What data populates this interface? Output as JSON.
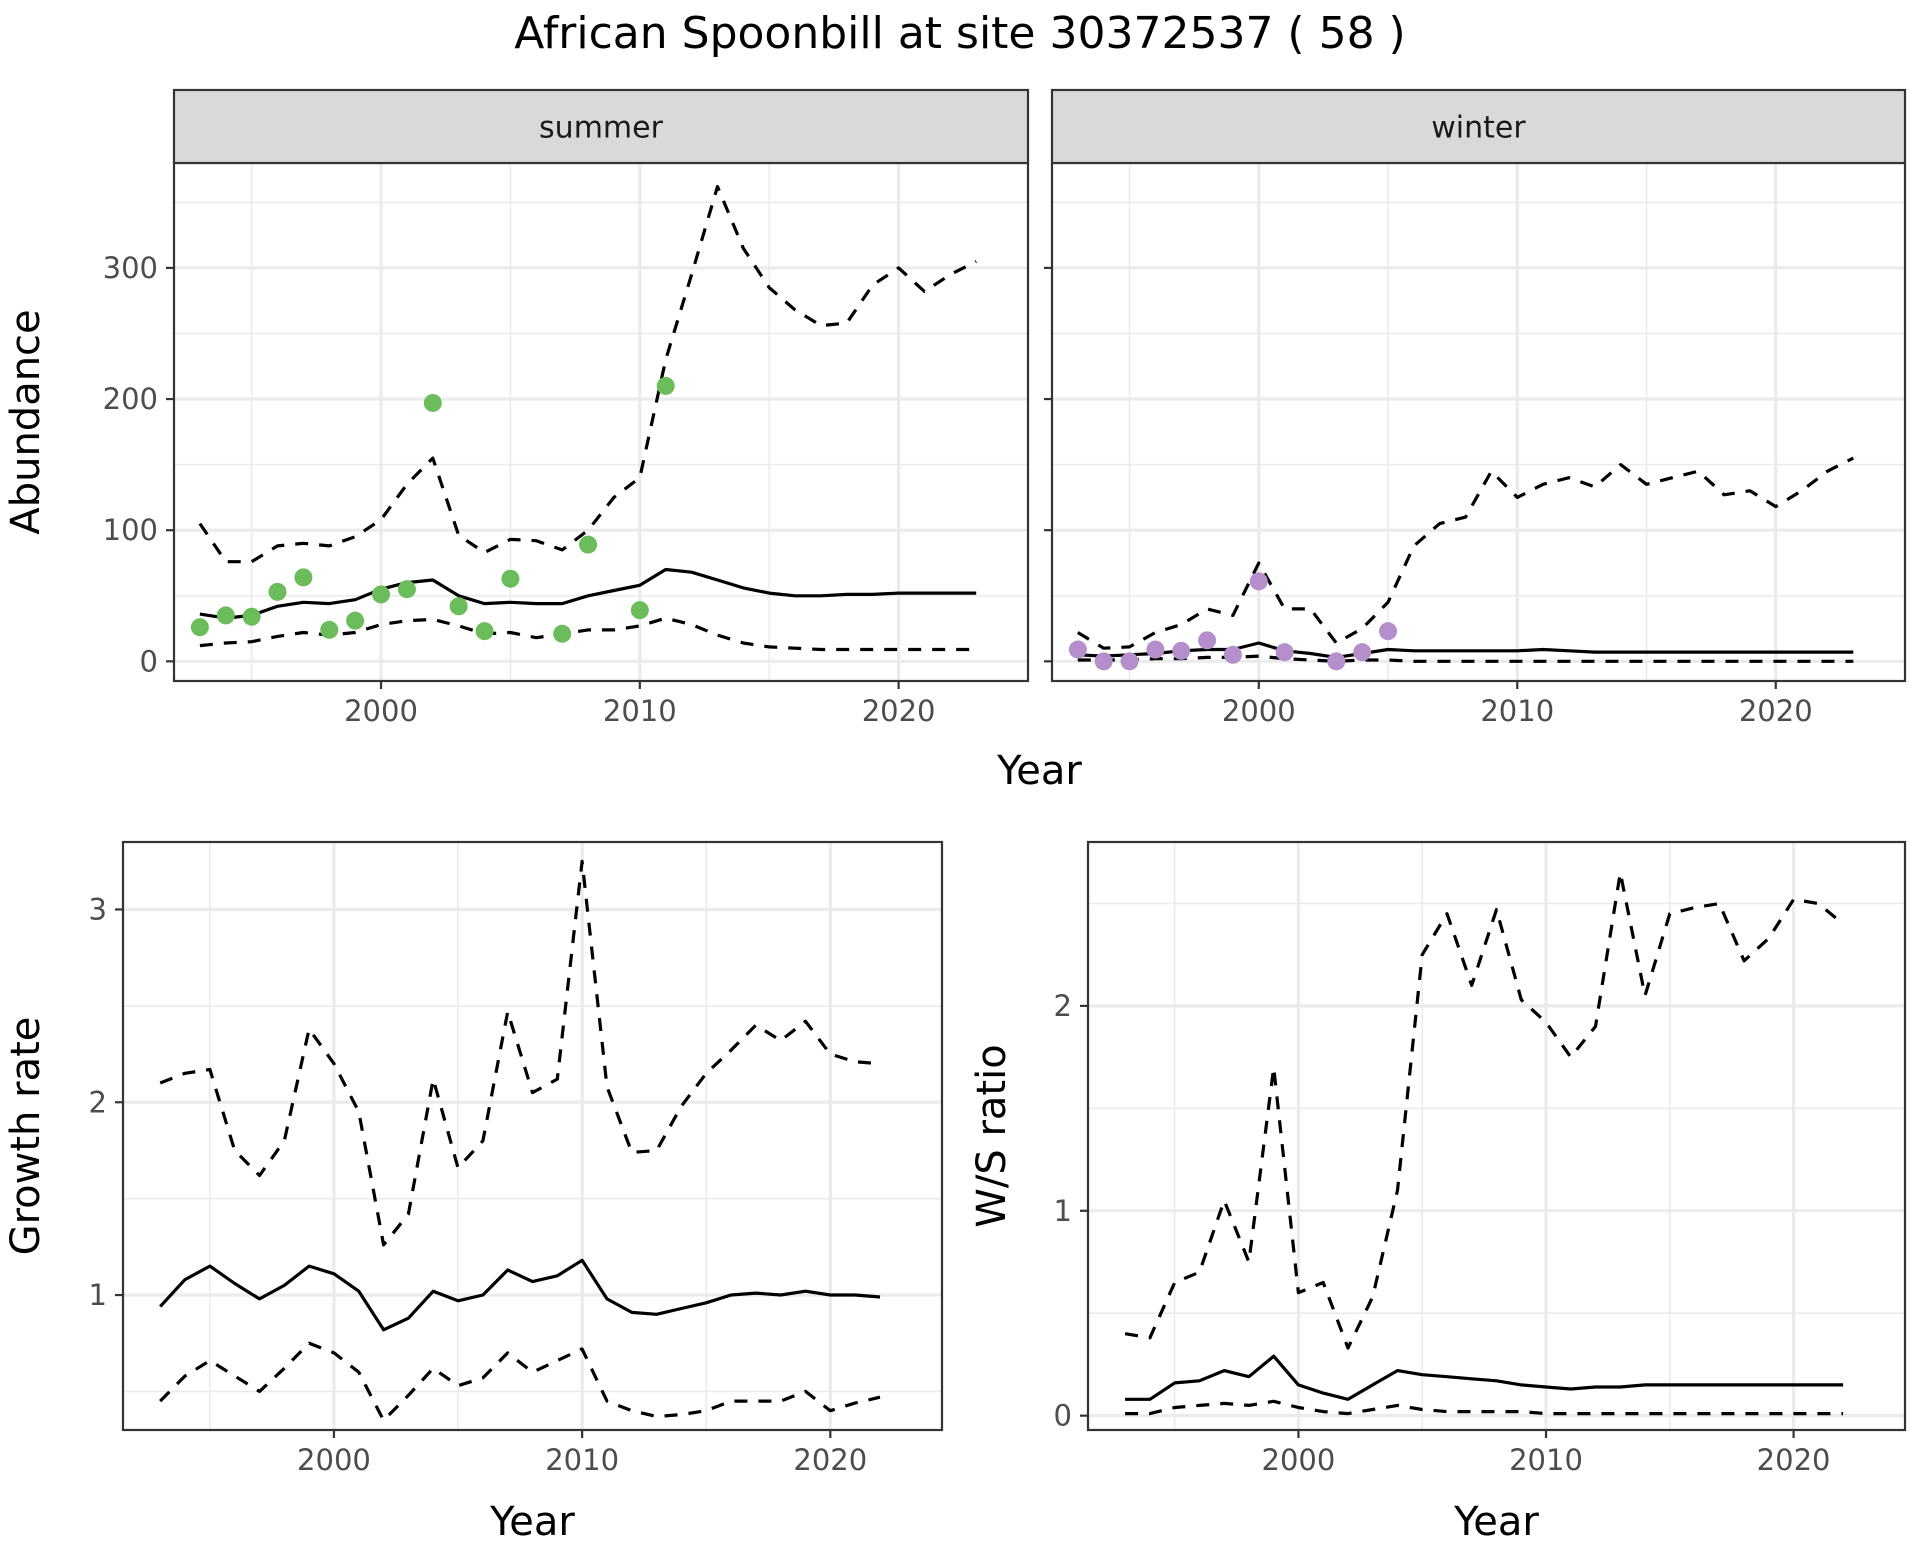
{
  "title": "African Spoonbill at site 30372537 ( 58 )",
  "colors": {
    "summer_points": "#6ABD5A",
    "winter_points": "#B48FCB",
    "grid": "#EBEBEB",
    "strip_fill": "#D9D9D9",
    "line": "#000000"
  },
  "chart_data": [
    {
      "type": "line",
      "panel": "summer",
      "strip_label": "summer",
      "xlabel": "Year",
      "ylabel": "Abundance",
      "xlim": [
        1992,
        2025
      ],
      "ylim": [
        -15,
        380
      ],
      "x_ticks": [
        2000,
        2010,
        2020
      ],
      "x_tick_labels": [
        "2000",
        "2010",
        "2020"
      ],
      "y_ticks": [
        0,
        100,
        200,
        300
      ],
      "y_tick_labels": [
        "0",
        "100",
        "200",
        "300"
      ],
      "grid": true,
      "series": [
        {
          "role": "estimate",
          "style": "solid",
          "x": [
            1993,
            1994,
            1995,
            1996,
            1997,
            1998,
            1999,
            2000,
            2001,
            2002,
            2003,
            2004,
            2005,
            2006,
            2007,
            2008,
            2009,
            2010,
            2011,
            2012,
            2013,
            2014,
            2015,
            2016,
            2017,
            2018,
            2019,
            2020,
            2021,
            2022,
            2023
          ],
          "y": [
            36,
            33,
            35,
            42,
            45,
            44,
            47,
            55,
            60,
            62,
            50,
            44,
            45,
            44,
            44,
            50,
            54,
            58,
            70,
            68,
            62,
            56,
            52,
            50,
            50,
            51,
            51,
            52,
            52,
            52,
            52
          ]
        },
        {
          "role": "upper",
          "style": "dashed",
          "x": [
            1993,
            1994,
            1995,
            1996,
            1997,
            1998,
            1999,
            2000,
            2001,
            2002,
            2003,
            2004,
            2005,
            2006,
            2007,
            2008,
            2009,
            2010,
            2011,
            2012,
            2013,
            2014,
            2015,
            2016,
            2017,
            2018,
            2019,
            2020,
            2021,
            2022,
            2023
          ],
          "y": [
            105,
            76,
            76,
            88,
            90,
            88,
            95,
            108,
            135,
            155,
            96,
            83,
            93,
            92,
            85,
            100,
            125,
            140,
            230,
            295,
            362,
            315,
            285,
            268,
            256,
            258,
            287,
            300,
            282,
            295,
            305
          ]
        },
        {
          "role": "lower",
          "style": "dashed",
          "x": [
            1993,
            1994,
            1995,
            1996,
            1997,
            1998,
            1999,
            2000,
            2001,
            2002,
            2003,
            2004,
            2005,
            2006,
            2007,
            2008,
            2009,
            2010,
            2011,
            2012,
            2013,
            2014,
            2015,
            2016,
            2017,
            2018,
            2019,
            2020,
            2021,
            2022,
            2023
          ],
          "y": [
            12,
            14,
            15,
            19,
            22,
            20,
            22,
            28,
            31,
            32,
            27,
            21,
            22,
            18,
            21,
            24,
            24,
            27,
            33,
            28,
            20,
            14,
            11,
            10,
            9,
            9,
            9,
            9,
            9,
            9,
            9
          ]
        },
        {
          "role": "observed",
          "style": "points",
          "x": [
            1993,
            1994,
            1995,
            1996,
            1997,
            1998,
            1999,
            2000,
            2001,
            2002,
            2003,
            2004,
            2005,
            2007,
            2008,
            2010,
            2011
          ],
          "y": [
            26,
            35,
            34,
            53,
            64,
            24,
            31,
            51,
            55,
            197,
            42,
            23,
            63,
            21,
            89,
            39,
            210
          ]
        }
      ]
    },
    {
      "type": "line",
      "panel": "winter",
      "strip_label": "winter",
      "xlabel": "Year",
      "ylabel": "",
      "xlim": [
        1992,
        2025
      ],
      "ylim": [
        -15,
        380
      ],
      "x_ticks": [
        2000,
        2010,
        2020
      ],
      "x_tick_labels": [
        "2000",
        "2010",
        "2020"
      ],
      "y_ticks": [
        0,
        100,
        200,
        300
      ],
      "grid": true,
      "series": [
        {
          "role": "estimate",
          "style": "solid",
          "x": [
            1993,
            1994,
            1995,
            1996,
            1997,
            1998,
            1999,
            2000,
            2001,
            2002,
            2003,
            2004,
            2005,
            2006,
            2007,
            2008,
            2009,
            2010,
            2011,
            2012,
            2013,
            2014,
            2015,
            2016,
            2017,
            2018,
            2019,
            2020,
            2021,
            2022,
            2023
          ],
          "y": [
            5,
            4,
            5,
            6,
            8,
            9,
            9,
            14,
            8,
            6,
            3,
            6,
            9,
            8,
            8,
            8,
            8,
            8,
            9,
            8,
            7,
            7,
            7,
            7,
            7,
            7,
            7,
            7,
            7,
            7,
            7
          ]
        },
        {
          "role": "upper",
          "style": "dashed",
          "x": [
            1993,
            1994,
            1995,
            1996,
            1997,
            1998,
            1999,
            2000,
            2001,
            2002,
            2003,
            2004,
            2005,
            2006,
            2007,
            2008,
            2009,
            2010,
            2011,
            2012,
            2013,
            2014,
            2015,
            2016,
            2017,
            2018,
            2019,
            2020,
            2021,
            2022,
            2023
          ],
          "y": [
            22,
            10,
            11,
            22,
            28,
            40,
            35,
            75,
            40,
            40,
            14,
            25,
            45,
            88,
            105,
            110,
            145,
            125,
            135,
            140,
            133,
            150,
            135,
            140,
            145,
            127,
            130,
            118,
            130,
            145,
            155
          ]
        },
        {
          "role": "lower",
          "style": "dashed",
          "x": [
            1993,
            1994,
            1995,
            1996,
            1997,
            1998,
            1999,
            2000,
            2001,
            2002,
            2003,
            2004,
            2005,
            2006,
            2007,
            2008,
            2009,
            2010,
            2011,
            2012,
            2013,
            2014,
            2015,
            2016,
            2017,
            2018,
            2019,
            2020,
            2021,
            2022,
            2023
          ],
          "y": [
            1,
            1,
            1,
            2,
            2,
            3,
            3,
            4,
            2,
            1,
            0,
            1,
            1,
            0,
            0,
            0,
            0,
            0,
            0,
            0,
            0,
            0,
            0,
            0,
            0,
            0,
            0,
            0,
            0,
            0,
            0
          ]
        },
        {
          "role": "observed",
          "style": "points",
          "x": [
            1993,
            1994,
            1995,
            1996,
            1997,
            1998,
            1999,
            2000,
            2001,
            2003,
            2004,
            2005
          ],
          "y": [
            9,
            0,
            0,
            9,
            8,
            16,
            5,
            61,
            7,
            0,
            7,
            23
          ]
        }
      ]
    },
    {
      "type": "line",
      "panel": "growth",
      "xlabel": "Year",
      "ylabel": "Growth rate",
      "xlim": [
        1991.5,
        2024.5
      ],
      "ylim": [
        0.3,
        3.35
      ],
      "x_ticks": [
        2000,
        2010,
        2020
      ],
      "x_tick_labels": [
        "2000",
        "2010",
        "2020"
      ],
      "y_ticks": [
        1,
        2,
        3
      ],
      "y_tick_labels": [
        "1",
        "2",
        "3"
      ],
      "grid": true,
      "series": [
        {
          "role": "estimate",
          "style": "solid",
          "x": [
            1993,
            1994,
            1995,
            1996,
            1997,
            1998,
            1999,
            2000,
            2001,
            2002,
            2003,
            2004,
            2005,
            2006,
            2007,
            2008,
            2009,
            2010,
            2011,
            2012,
            2013,
            2014,
            2015,
            2016,
            2017,
            2018,
            2019,
            2020,
            2021,
            2022
          ],
          "y": [
            0.94,
            1.08,
            1.15,
            1.06,
            0.98,
            1.05,
            1.15,
            1.11,
            1.02,
            0.82,
            0.88,
            1.02,
            0.97,
            1.0,
            1.13,
            1.07,
            1.1,
            1.18,
            0.98,
            0.91,
            0.9,
            0.93,
            0.96,
            1.0,
            1.01,
            1.0,
            1.02,
            1.0,
            1.0,
            0.99
          ]
        },
        {
          "role": "upper",
          "style": "dashed",
          "x": [
            1993,
            1994,
            1995,
            1996,
            1997,
            1998,
            1999,
            2000,
            2001,
            2002,
            2003,
            2004,
            2005,
            2006,
            2007,
            2008,
            2009,
            2010,
            2011,
            2012,
            2013,
            2014,
            2015,
            2016,
            2017,
            2018,
            2019,
            2020,
            2021,
            2022
          ],
          "y": [
            2.1,
            2.15,
            2.17,
            1.75,
            1.62,
            1.8,
            2.38,
            2.2,
            1.95,
            1.26,
            1.42,
            2.12,
            1.66,
            1.8,
            2.47,
            2.05,
            2.12,
            3.25,
            2.08,
            1.74,
            1.75,
            1.98,
            2.15,
            2.27,
            2.4,
            2.32,
            2.42,
            2.25,
            2.21,
            2.2
          ]
        },
        {
          "role": "lower",
          "style": "dashed",
          "x": [
            1993,
            1994,
            1995,
            1996,
            1997,
            1998,
            1999,
            2000,
            2001,
            2002,
            2003,
            2004,
            2005,
            2006,
            2007,
            2008,
            2009,
            2010,
            2011,
            2012,
            2013,
            2014,
            2015,
            2016,
            2017,
            2018,
            2019,
            2020,
            2021,
            2022
          ],
          "y": [
            0.45,
            0.58,
            0.66,
            0.58,
            0.5,
            0.62,
            0.75,
            0.7,
            0.6,
            0.35,
            0.48,
            0.62,
            0.53,
            0.57,
            0.7,
            0.6,
            0.66,
            0.72,
            0.45,
            0.4,
            0.37,
            0.38,
            0.4,
            0.45,
            0.45,
            0.45,
            0.5,
            0.4,
            0.44,
            0.47
          ]
        }
      ]
    },
    {
      "type": "line",
      "panel": "ratio",
      "xlabel": "Year",
      "ylabel": "W/S ratio",
      "xlim": [
        1991.5,
        2024.5
      ],
      "ylim": [
        -0.07,
        2.8
      ],
      "x_ticks": [
        2000,
        2010,
        2020
      ],
      "x_tick_labels": [
        "2000",
        "2010",
        "2020"
      ],
      "y_ticks": [
        0,
        1,
        2
      ],
      "y_tick_labels": [
        "0",
        "1",
        "2"
      ],
      "grid": true,
      "series": [
        {
          "role": "estimate",
          "style": "solid",
          "x": [
            1993,
            1994,
            1995,
            1996,
            1997,
            1998,
            1999,
            2000,
            2001,
            2002,
            2003,
            2004,
            2005,
            2006,
            2007,
            2008,
            2009,
            2010,
            2011,
            2012,
            2013,
            2014,
            2015,
            2016,
            2017,
            2018,
            2019,
            2020,
            2021,
            2022
          ],
          "y": [
            0.08,
            0.08,
            0.16,
            0.17,
            0.22,
            0.19,
            0.29,
            0.15,
            0.11,
            0.08,
            0.15,
            0.22,
            0.2,
            0.19,
            0.18,
            0.17,
            0.15,
            0.14,
            0.13,
            0.14,
            0.14,
            0.15,
            0.15,
            0.15,
            0.15,
            0.15,
            0.15,
            0.15,
            0.15,
            0.15
          ]
        },
        {
          "role": "upper",
          "style": "dashed",
          "x": [
            1993,
            1994,
            1995,
            1996,
            1997,
            1998,
            1999,
            2000,
            2001,
            2002,
            2003,
            2004,
            2005,
            2006,
            2007,
            2008,
            2009,
            2010,
            2011,
            2012,
            2013,
            2014,
            2015,
            2016,
            2017,
            2018,
            2019,
            2020,
            2021,
            2022
          ],
          "y": [
            0.4,
            0.38,
            0.65,
            0.7,
            1.05,
            0.75,
            1.7,
            0.6,
            0.65,
            0.33,
            0.58,
            1.1,
            2.25,
            2.45,
            2.1,
            2.47,
            2.03,
            1.92,
            1.75,
            1.9,
            2.65,
            2.05,
            2.45,
            2.48,
            2.5,
            2.22,
            2.33,
            2.52,
            2.5,
            2.4
          ]
        },
        {
          "role": "lower",
          "style": "dashed",
          "x": [
            1993,
            1994,
            1995,
            1996,
            1997,
            1998,
            1999,
            2000,
            2001,
            2002,
            2003,
            2004,
            2005,
            2006,
            2007,
            2008,
            2009,
            2010,
            2011,
            2012,
            2013,
            2014,
            2015,
            2016,
            2017,
            2018,
            2019,
            2020,
            2021,
            2022
          ],
          "y": [
            0.01,
            0.01,
            0.04,
            0.05,
            0.06,
            0.05,
            0.07,
            0.04,
            0.02,
            0.01,
            0.03,
            0.05,
            0.03,
            0.02,
            0.02,
            0.02,
            0.02,
            0.01,
            0.01,
            0.01,
            0.01,
            0.01,
            0.01,
            0.01,
            0.01,
            0.01,
            0.01,
            0.01,
            0.01,
            0.01
          ]
        }
      ]
    }
  ]
}
